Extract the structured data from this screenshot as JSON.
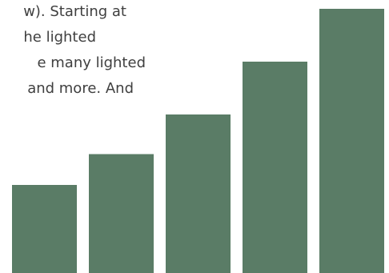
{
  "text": {
    "lines": [
      "w). Starting at",
      "he lighted",
      "e many lighted",
      "and more. And"
    ]
  },
  "colors": {
    "bar": "#5a7c66",
    "text": "#3f3f3f",
    "background": "#ffffff"
  },
  "chart_data": {
    "type": "bar",
    "categories": [
      "",
      "",
      "",
      "",
      ""
    ],
    "values": [
      1,
      1.35,
      1.8,
      2.4,
      3.0
    ],
    "title": "",
    "xlabel": "",
    "ylabel": "",
    "grid": false
  }
}
